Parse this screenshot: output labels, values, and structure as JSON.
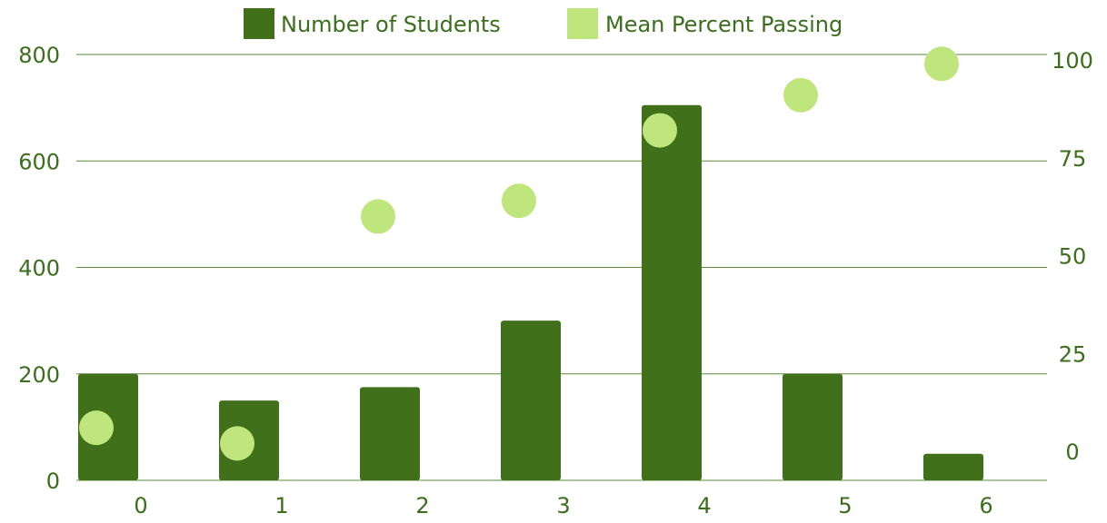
{
  "colors": {
    "bar": "#41701a",
    "dot": "#bfe67d",
    "text": "#3b6e1d",
    "grid": "#5e8a3c"
  },
  "chart_data": {
    "type": "bar",
    "title": "",
    "xlabel": "",
    "ylabel": "",
    "categories": [
      "0",
      "1",
      "2",
      "3",
      "4",
      "5",
      "6"
    ],
    "ylim": [
      0,
      800
    ],
    "y2lim": [
      0,
      100
    ],
    "yticks": [
      "0",
      "200",
      "400",
      "600",
      "800"
    ],
    "y2ticks": [
      "0",
      "25",
      "50",
      "75",
      "100"
    ],
    "legend": {
      "position": "top"
    },
    "grid": true,
    "series": [
      {
        "name": "Number of Students",
        "type": "bar",
        "axis": "left",
        "values": [
          200,
          150,
          175,
          300,
          705,
          200,
          50
        ]
      },
      {
        "name": "Mean Percent Passing",
        "type": "scatter",
        "axis": "right",
        "values": [
          6,
          2,
          60,
          64,
          82,
          91,
          99
        ]
      }
    ]
  }
}
